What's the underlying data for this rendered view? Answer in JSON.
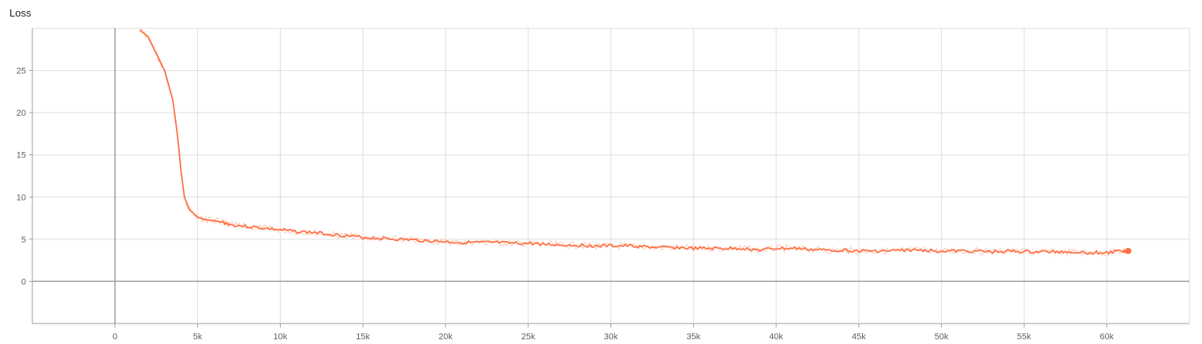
{
  "chart_data": {
    "type": "line",
    "title": "Loss",
    "xlabel": "",
    "ylabel": "",
    "xlim": [
      -5000,
      65000
    ],
    "ylim": [
      -5,
      30
    ],
    "x_ticks": [
      0,
      5000,
      10000,
      15000,
      20000,
      25000,
      30000,
      35000,
      40000,
      45000,
      50000,
      55000,
      60000
    ],
    "x_tick_labels": [
      "0",
      "5k",
      "10k",
      "15k",
      "20k",
      "25k",
      "30k",
      "35k",
      "40k",
      "45k",
      "50k",
      "55k",
      "60k"
    ],
    "y_ticks": [
      0,
      5,
      10,
      15,
      20,
      25
    ],
    "y_tick_labels": [
      "0",
      "5",
      "10",
      "15",
      "20",
      "25"
    ],
    "grid": true,
    "colors": {
      "smoothed": "#ff7043",
      "raw": "#ffccbc",
      "grid": "#dddddd",
      "zero_axis": "#9e9e9e",
      "axis": "#9e9e9e"
    },
    "series": [
      {
        "x": [
          1500,
          2000,
          2500,
          3000,
          3500,
          3800,
          4000,
          4200,
          4500,
          5000,
          5500,
          6000,
          6500,
          7000,
          8000,
          9000,
          10000,
          11000,
          12000,
          13000,
          14000,
          15000,
          16000,
          17000,
          18000,
          19000,
          20000,
          21000,
          22000,
          23000,
          24000,
          25000,
          26000,
          27000,
          28000,
          29000,
          30000,
          31000,
          32000,
          33000,
          34000,
          35000,
          36000,
          37000,
          38000,
          39000,
          40000,
          41000,
          42000,
          43000,
          44000,
          45000,
          46000,
          47000,
          48000,
          49000,
          50000,
          51000,
          52000,
          53000,
          54000,
          55000,
          56000,
          57000,
          58000,
          59000,
          60000,
          61000,
          61300
        ],
        "y": [
          29.8,
          29.0,
          27.0,
          25.0,
          21.5,
          17.0,
          13.0,
          10.0,
          8.5,
          7.6,
          7.3,
          7.2,
          7.0,
          6.7,
          6.5,
          6.3,
          6.1,
          5.9,
          5.8,
          5.6,
          5.4,
          5.2,
          5.1,
          5.0,
          4.9,
          4.8,
          4.7,
          4.6,
          4.6,
          4.6,
          4.5,
          4.5,
          4.4,
          4.3,
          4.3,
          4.2,
          4.2,
          4.2,
          4.1,
          4.0,
          4.0,
          3.9,
          3.9,
          3.9,
          3.9,
          3.7,
          3.9,
          3.9,
          3.8,
          3.7,
          3.7,
          3.6,
          3.6,
          3.6,
          3.7,
          3.7,
          3.6,
          3.6,
          3.6,
          3.5,
          3.6,
          3.5,
          3.5,
          3.5,
          3.5,
          3.4,
          3.4,
          3.6,
          3.6
        ]
      }
    ],
    "end_marker": {
      "x": 61300,
      "y": 3.6
    }
  }
}
